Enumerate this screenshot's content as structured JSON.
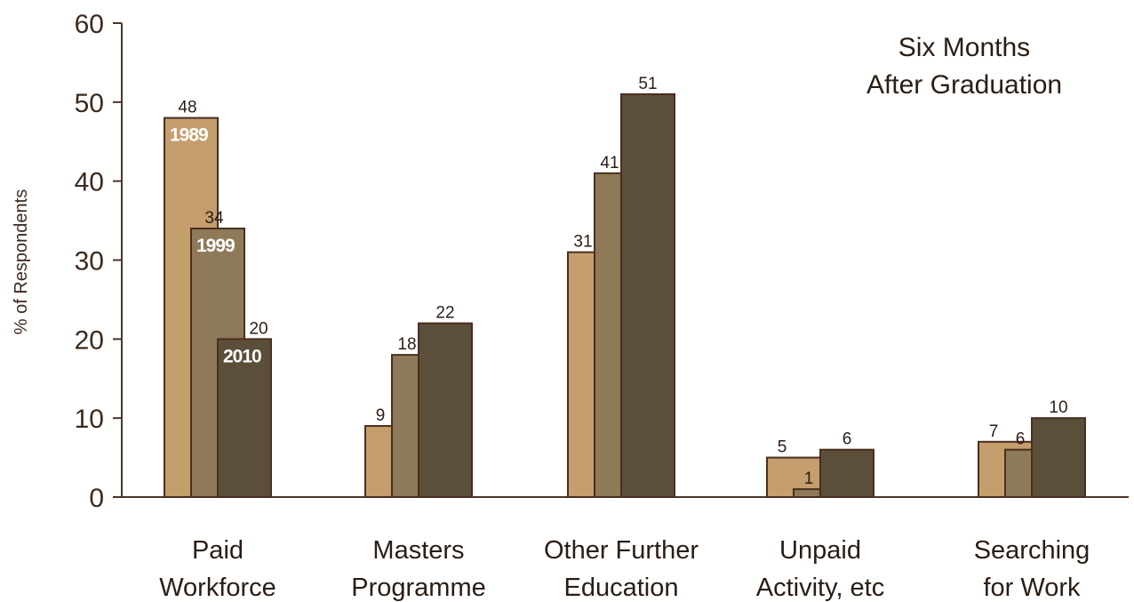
{
  "chart_data": {
    "type": "bar",
    "annotation_lines": [
      "Six Months",
      "After Graduation"
    ],
    "ylabel": "% of Respondents",
    "ylim": [
      0,
      60
    ],
    "yticks": [
      "0",
      "10",
      "20",
      "30",
      "40",
      "50",
      "60"
    ],
    "categories": [
      [
        "Paid",
        "Workforce"
      ],
      [
        "Masters",
        "Programme"
      ],
      [
        "Other Further",
        "Education"
      ],
      [
        "Unpaid",
        "Activity, etc"
      ],
      [
        "Searching",
        "for Work"
      ]
    ],
    "series": [
      {
        "name": "1989",
        "color": "#c59e6e",
        "values": [
          48,
          9,
          31,
          5,
          7
        ]
      },
      {
        "name": "1999",
        "color": "#8e7a58",
        "values": [
          34,
          18,
          41,
          1,
          6
        ]
      },
      {
        "name": "2010",
        "color": "#5b4f3b",
        "values": [
          20,
          22,
          51,
          6,
          10
        ]
      }
    ],
    "colors": {
      "axis": "#4a3526",
      "bar_stroke": "#4a2e1e",
      "text": "#2a1d14",
      "ytick_text": "#3d2a1d",
      "inline_label": "#ffffff"
    },
    "grid": false,
    "legend": "inline labels on first category bars"
  }
}
